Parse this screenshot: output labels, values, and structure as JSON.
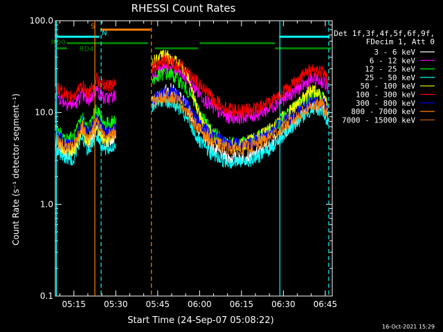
{
  "chart_data": {
    "type": "line",
    "title": "RHESSI Count Rates",
    "xlabel": "Start Time (24-Sep-07 05:08:22)",
    "ylabel": "Count Rate (s⁻¹ detector segment⁻¹)",
    "y_scale": "log",
    "ylim": [
      0.1,
      100
    ],
    "xlim": [
      "05:08:22",
      "06:47:30"
    ],
    "x_ticks": [
      "05:15",
      "05:30",
      "05:45",
      "06:00",
      "06:15",
      "06:30",
      "06:45"
    ],
    "y_ticks": [
      "0.1",
      "1.0",
      "10.0",
      "100.0"
    ],
    "legend_header": [
      "Det 1f,3f,4f,5f,6f,9f,",
      "FDecim 1, Att 0"
    ],
    "series": [
      {
        "name": "3 - 6 keV",
        "color": "#ffffff",
        "x": [
          "05:08",
          "05:12",
          "05:15",
          "05:18",
          "05:20",
          "05:23",
          "05:26",
          "05:29",
          "05:43",
          "05:47",
          "05:50",
          "05:53",
          "05:56",
          "06:00",
          "06:05",
          "06:10",
          "06:15",
          "06:20",
          "06:25",
          "06:30",
          "06:35",
          "06:40",
          "06:44",
          "06:46"
        ],
        "values": [
          5.0,
          3.6,
          3.8,
          6.8,
          4.5,
          6.5,
          4.5,
          5.0,
          13,
          17,
          18,
          15,
          11,
          6.5,
          4.0,
          3.2,
          3.2,
          3.5,
          4.5,
          6.0,
          8.5,
          12,
          12,
          9
        ]
      },
      {
        "name": "6 - 12 keV",
        "color": "#ff00ff",
        "x": [
          "05:08",
          "05:12",
          "05:15",
          "05:18",
          "05:20",
          "05:23",
          "05:26",
          "05:29",
          "05:43",
          "05:47",
          "05:50",
          "05:53",
          "05:56",
          "06:00",
          "06:05",
          "06:10",
          "06:15",
          "06:20",
          "06:25",
          "06:30",
          "06:35",
          "06:40",
          "06:44",
          "06:46"
        ],
        "values": [
          16,
          13,
          12,
          16,
          13,
          18,
          14,
          15,
          25,
          30,
          30,
          27,
          23,
          16,
          11,
          9,
          9,
          9.5,
          11,
          14,
          18,
          23,
          22,
          19
        ]
      },
      {
        "name": "12 - 25 keV",
        "color": "#00ff00",
        "x": [
          "05:08",
          "05:12",
          "05:15",
          "05:18",
          "05:20",
          "05:23",
          "05:26",
          "05:29",
          "05:43",
          "05:47",
          "05:50",
          "05:53",
          "05:56",
          "06:00",
          "06:05",
          "06:10",
          "06:15",
          "06:20",
          "06:25",
          "06:30",
          "06:35",
          "06:40",
          "06:44",
          "06:46"
        ],
        "values": [
          7,
          5.2,
          5.4,
          9,
          6.5,
          11,
          7.5,
          8,
          22,
          27,
          26,
          22,
          17,
          10,
          6,
          4.8,
          4.6,
          5.2,
          6.5,
          9,
          12,
          16,
          15,
          12
        ]
      },
      {
        "name": "25 - 50 keV",
        "color": "#00ffff",
        "x": [
          "05:08",
          "05:12",
          "05:15",
          "05:18",
          "05:20",
          "05:23",
          "05:26",
          "05:29",
          "05:43",
          "05:47",
          "05:50",
          "05:53",
          "05:56",
          "06:00",
          "06:05",
          "06:10",
          "06:15",
          "06:20",
          "06:25",
          "06:30",
          "06:35",
          "06:40",
          "06:44",
          "06:46"
        ],
        "values": [
          4.2,
          3.2,
          3.2,
          5.5,
          3.8,
          5.8,
          3.8,
          4.2,
          12,
          14,
          13,
          11,
          8,
          4.8,
          3.4,
          2.9,
          2.9,
          3.2,
          4.0,
          5.5,
          8,
          11,
          11,
          7.5
        ]
      },
      {
        "name": "50 - 100 keV",
        "color": "#ffff00",
        "x": [
          "05:08",
          "05:12",
          "05:15",
          "05:18",
          "05:20",
          "05:23",
          "05:26",
          "05:29",
          "05:43",
          "05:47",
          "05:50",
          "05:53",
          "05:56",
          "06:00",
          "06:05",
          "06:10",
          "06:15",
          "06:20",
          "06:25",
          "06:30",
          "06:35",
          "06:40",
          "06:44",
          "06:46"
        ],
        "values": [
          5,
          4,
          4,
          6.5,
          4.8,
          7,
          5,
          5.5,
          35,
          42,
          40,
          33,
          25,
          9,
          5.5,
          4.5,
          4.5,
          5.2,
          6.5,
          9,
          12,
          18,
          15,
          12
        ]
      },
      {
        "name": "100 - 300 keV",
        "color": "#ff0000",
        "x": [
          "05:08",
          "05:12",
          "05:15",
          "05:18",
          "05:20",
          "05:23",
          "05:26",
          "05:29",
          "05:43",
          "05:47",
          "05:50",
          "05:53",
          "05:56",
          "06:00",
          "06:05",
          "06:10",
          "06:15",
          "06:20",
          "06:25",
          "06:30",
          "06:35",
          "06:40",
          "06:44",
          "06:46"
        ],
        "values": [
          20,
          16,
          15,
          20,
          16,
          24,
          19,
          20,
          32,
          37,
          36,
          33,
          28,
          20,
          14,
          11,
          10.5,
          11,
          13,
          17,
          23,
          30,
          28,
          22
        ]
      },
      {
        "name": "300 - 800 keV",
        "color": "#0000ff",
        "x": [
          "05:08",
          "05:12",
          "05:15",
          "05:18",
          "05:20",
          "05:23",
          "05:26",
          "05:29",
          "05:43",
          "05:47",
          "05:50",
          "05:53",
          "05:56",
          "06:00",
          "06:05",
          "06:10",
          "06:15",
          "06:20",
          "06:25",
          "06:30",
          "06:35",
          "06:40",
          "06:44",
          "06:46"
        ],
        "values": [
          6,
          4.6,
          4.8,
          8,
          5.6,
          9,
          6,
          6.5,
          14,
          17,
          17,
          15,
          12,
          7.5,
          5.5,
          4.6,
          4.6,
          5.0,
          6.0,
          8.0,
          10,
          13,
          13,
          11
        ]
      },
      {
        "name": "800 - 7000 keV",
        "color": "#ff8000",
        "x": [
          "05:08",
          "05:12",
          "05:15",
          "05:18",
          "05:20",
          "05:23",
          "05:26",
          "05:29",
          "05:43",
          "05:47",
          "05:50",
          "05:53",
          "05:56",
          "06:00",
          "06:05",
          "06:10",
          "06:15",
          "06:20",
          "06:25",
          "06:30",
          "06:35",
          "06:40",
          "06:44",
          "06:46"
        ],
        "values": [
          5.2,
          4.2,
          4.4,
          7.2,
          5.0,
          8,
          5.4,
          6,
          13,
          15,
          15,
          13,
          10,
          6.5,
          4.8,
          4.1,
          4.1,
          4.4,
          5.4,
          7.0,
          9,
          12,
          12,
          10
        ]
      },
      {
        "name": "7000 - 15000 keV",
        "color": "#c06000",
        "x": [],
        "values": []
      }
    ],
    "annotations": [
      {
        "label": "S",
        "color": "#ff8000",
        "y": 80,
        "x_start": "05:24:30",
        "x_end": "05:42:30"
      },
      {
        "label": "N",
        "color": "#00ffff",
        "y": 67,
        "x_start": "05:08:22",
        "x_end": "05:24:00"
      },
      {
        "label": "",
        "color": "#00ffff",
        "y": 67,
        "x_start": "06:28:30",
        "x_end": "06:46:30"
      },
      {
        "label": "RD0",
        "color": "#008000",
        "y": 57,
        "x_start": "05:12:30",
        "x_end": "05:41:30"
      },
      {
        "label": "",
        "color": "#008000",
        "y": 50,
        "x_start": "05:44:00",
        "x_end": "05:59:30"
      },
      {
        "label": "",
        "color": "#008000",
        "y": 57,
        "x_start": "06:00:00",
        "x_end": "06:27:00"
      },
      {
        "label": "",
        "color": "#008000",
        "y": 50,
        "x_start": "06:27:00",
        "x_end": "06:47:30"
      },
      {
        "label": "RD4",
        "color": "#008000",
        "y": 50,
        "x_start": "05:08:22",
        "x_end": "05:12:30"
      }
    ],
    "vertical_lines": [
      {
        "x": "05:08:45",
        "color": "#00ffff",
        "style": "solid"
      },
      {
        "x": "05:22:30",
        "color": "#ff8000",
        "style": "solid"
      },
      {
        "x": "05:24:45",
        "color": "#00ffff",
        "style": "dashed"
      },
      {
        "x": "05:42:45",
        "color": "#ff8000",
        "style": "dashed"
      },
      {
        "x": "06:28:45",
        "color": "#00ffff",
        "style": "solid"
      },
      {
        "x": "06:46:15",
        "color": "#00ffff",
        "style": "dashed"
      }
    ]
  },
  "footer_timestamp": "16-Oct-2021 15:29"
}
